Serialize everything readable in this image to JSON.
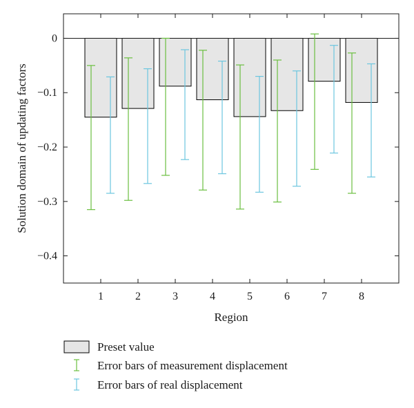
{
  "chart_data": {
    "type": "bar",
    "xlabel": "Region",
    "ylabel": "Solution domain of updating factors",
    "ylim": [
      -0.45,
      0.045
    ],
    "yticks": [
      0,
      -0.1,
      -0.2,
      -0.3,
      -0.4
    ],
    "ytick_labels": [
      "0",
      "−0.1",
      "−0.2",
      "−0.3",
      "−0.4"
    ],
    "categories": [
      "1",
      "2",
      "3",
      "4",
      "5",
      "6",
      "7",
      "8"
    ],
    "grid": false,
    "legend_position": "bottom",
    "series": [
      {
        "name": "Preset value",
        "kind": "bar",
        "color": "#e6e6e6",
        "edge_color": "#000000",
        "values": [
          -0.145,
          -0.129,
          -0.088,
          -0.113,
          -0.144,
          -0.133,
          -0.079,
          -0.118
        ]
      },
      {
        "name": "Error bars of measurement displacement",
        "kind": "errorbar",
        "color": "#6abf3f",
        "lower": [
          -0.315,
          -0.298,
          -0.252,
          -0.279,
          -0.314,
          -0.301,
          -0.241,
          -0.285
        ],
        "upper": [
          -0.05,
          -0.036,
          0.0,
          -0.022,
          -0.049,
          -0.04,
          0.008,
          -0.027
        ]
      },
      {
        "name": "Error bars of real displacement",
        "kind": "errorbar",
        "color": "#6cc6df",
        "lower": [
          -0.285,
          -0.267,
          -0.223,
          -0.249,
          -0.283,
          -0.272,
          -0.211,
          -0.255
        ],
        "upper": [
          -0.071,
          -0.056,
          -0.021,
          -0.042,
          -0.07,
          -0.06,
          -0.013,
          -0.047
        ]
      }
    ]
  }
}
